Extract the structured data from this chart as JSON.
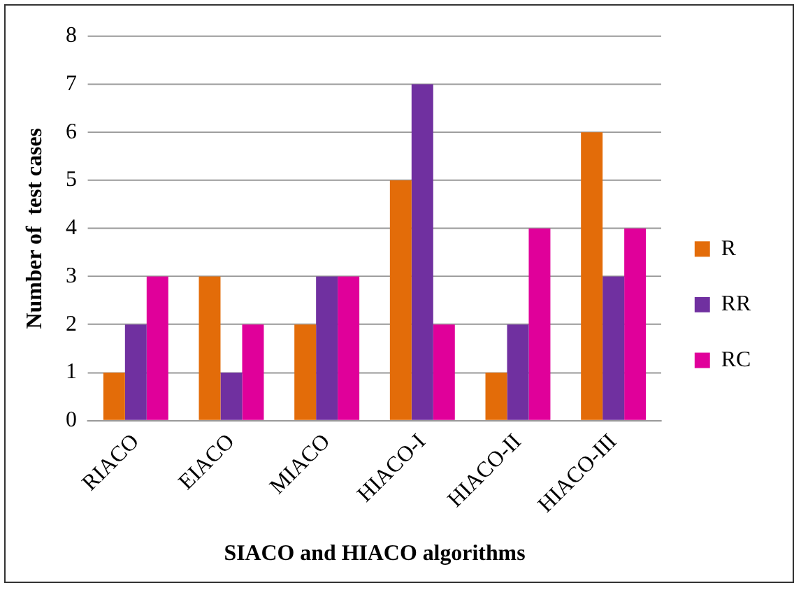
{
  "chart_data": {
    "type": "bar",
    "xlabel": "SIACO and HIACO algorithms",
    "ylabel": "Number of  test cases",
    "categories": [
      "RIACO",
      "EIACO",
      "MIACO",
      "HIACO-I",
      "HIACO-II",
      "HIACO-III"
    ],
    "series": [
      {
        "name": "R",
        "color": "#e36c09",
        "values": [
          1,
          3,
          2,
          5,
          1,
          6
        ]
      },
      {
        "name": "RR",
        "color": "#7030a0",
        "values": [
          2,
          1,
          3,
          7,
          2,
          3
        ]
      },
      {
        "name": "RC",
        "color": "#e0009a",
        "values": [
          3,
          2,
          3,
          2,
          4,
          4
        ]
      }
    ],
    "ylim": [
      0,
      8
    ],
    "yticks": [
      0,
      1,
      2,
      3,
      4,
      5,
      6,
      7,
      8
    ],
    "grid": "y",
    "legend": "right"
  }
}
